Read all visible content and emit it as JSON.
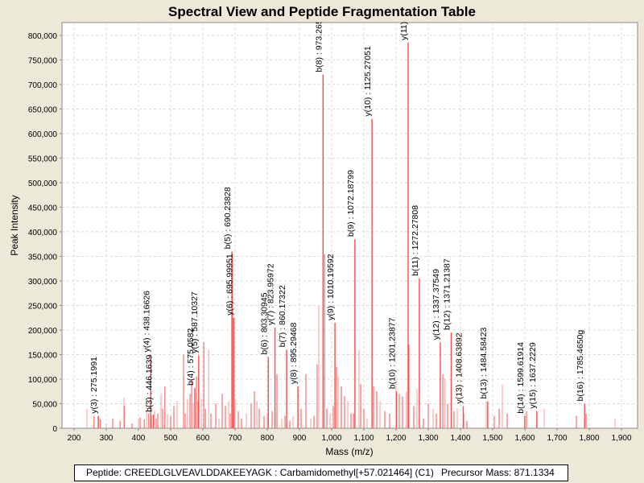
{
  "chart_data": {
    "type": "bar",
    "title": "Spectral View and Peptide Fragmentation Table",
    "xlabel": "Mass (m/z)",
    "ylabel": "Peak Intensity",
    "xlim": [
      162.5,
      1950
    ],
    "ylim": [
      0,
      826000
    ],
    "xticks": [
      200,
      300,
      400,
      500,
      600,
      700,
      800,
      900,
      1000,
      1100,
      1200,
      1300,
      1400,
      1500,
      1600,
      1700,
      1800,
      1900
    ],
    "xtick_labels": [
      "200",
      "300",
      "400",
      "500",
      "600",
      "700",
      "800",
      "900",
      "1,000",
      "1,100",
      "1,200",
      "1,300",
      "1,400",
      "1,500",
      "1,600",
      "1,700",
      "1,800",
      "1,900"
    ],
    "yticks": [
      0,
      50000,
      100000,
      150000,
      200000,
      250000,
      300000,
      350000,
      400000,
      450000,
      500000,
      550000,
      600000,
      650000,
      700000,
      750000,
      800000
    ],
    "ytick_labels": [
      "0",
      "50,000",
      "100,000",
      "150,000",
      "200,000",
      "250,000",
      "300,000",
      "350,000",
      "400,000",
      "450,000",
      "500,000",
      "550,000",
      "600,000",
      "650,000",
      "700,000",
      "750,000",
      "800,000"
    ],
    "grid": true,
    "colors": {
      "annotated": "#ff4a4a",
      "peak": "#ff6a6a",
      "peak_light": "#ffaaaa",
      "background": "#ffffff",
      "grid": "#d8d8d8"
    },
    "annotated_peaks": [
      {
        "mass": 275.1991,
        "intensity": 25000,
        "label": "y(3) : 275.1991"
      },
      {
        "mass": 446.1639,
        "intensity": 28000,
        "label": "b(3) : 446.1639"
      },
      {
        "mass": 438.16626,
        "intensity": 150000,
        "label": "y(4) : 438.16626"
      },
      {
        "mass": 575.0582,
        "intensity": 82000,
        "label": "b(4) : 575.0582"
      },
      {
        "mass": 587.10327,
        "intensity": 148000,
        "label": "y(5) : 587.10327"
      },
      {
        "mass": 690.23828,
        "intensity": 360000,
        "label": "b(5) : 690.23828"
      },
      {
        "mass": 695.99951,
        "intensity": 225000,
        "label": "y(6) : 695.99951"
      },
      {
        "mass": 803.30945,
        "intensity": 145000,
        "label": "b(6) : 803.30945"
      },
      {
        "mass": 823.95972,
        "intensity": 205000,
        "label": "y(7) : 823.95972"
      },
      {
        "mass": 860.17322,
        "intensity": 160000,
        "label": "b(7) : 860.17322"
      },
      {
        "mass": 895.29468,
        "intensity": 85000,
        "label": "y(8) : 895.29468"
      },
      {
        "mass": 973.265,
        "intensity": 720000,
        "label": "b(8) : 973.265"
      },
      {
        "mass": 1010.19592,
        "intensity": 215000,
        "label": "y(9) : 1010.19592"
      },
      {
        "mass": 1072.18799,
        "intensity": 385000,
        "label": "b(9) : 1072.18799"
      },
      {
        "mass": 1125.27051,
        "intensity": 630000,
        "label": "y(10) : 1125.27051"
      },
      {
        "mass": 1201.23877,
        "intensity": 75000,
        "label": "b(10) : 1201.23877"
      },
      {
        "mass": 1237.5,
        "intensity": 785000,
        "label": "y(11)"
      },
      {
        "mass": 1272.27808,
        "intensity": 305000,
        "label": "b(11) : 1272.27808"
      },
      {
        "mass": 1337.37549,
        "intensity": 175000,
        "label": "y(12) : 1337.37549"
      },
      {
        "mass": 1371.21387,
        "intensity": 195000,
        "label": "b(12) : 1371.21387"
      },
      {
        "mass": 1408.63892,
        "intensity": 45000,
        "label": "y(13) : 1408.63892"
      },
      {
        "mass": 1484.58423,
        "intensity": 55000,
        "label": "b(13) : 1484.58423"
      },
      {
        "mass": 1599.61914,
        "intensity": 25000,
        "label": "b(14) : 1599.61914"
      },
      {
        "mass": 1637.2229,
        "intensity": 35000,
        "label": "y(15) : 1637.2229"
      },
      {
        "mass": 1785.465,
        "intensity": 50000,
        "label": "b(16) : 1785.4650g"
      }
    ],
    "peaks": [
      [
        240,
        40000
      ],
      [
        262,
        25000
      ],
      [
        282,
        18000
      ],
      [
        300,
        10000
      ],
      [
        320,
        20000
      ],
      [
        343,
        15000
      ],
      [
        355,
        62000
      ],
      [
        356,
        45000
      ],
      [
        380,
        10000
      ],
      [
        400,
        20000
      ],
      [
        405,
        22000
      ],
      [
        418,
        18000
      ],
      [
        425,
        60000
      ],
      [
        432,
        30000
      ],
      [
        440,
        25000
      ],
      [
        450,
        35000
      ],
      [
        455,
        20000
      ],
      [
        460,
        30000
      ],
      [
        470,
        70000
      ],
      [
        475,
        40000
      ],
      [
        482,
        85000
      ],
      [
        490,
        30000
      ],
      [
        500,
        25000
      ],
      [
        510,
        45000
      ],
      [
        520,
        55000
      ],
      [
        540,
        150000
      ],
      [
        545,
        30000
      ],
      [
        552,
        60000
      ],
      [
        560,
        70000
      ],
      [
        565,
        100000
      ],
      [
        570,
        50000
      ],
      [
        580,
        105000
      ],
      [
        585,
        55000
      ],
      [
        595,
        60000
      ],
      [
        603,
        175000
      ],
      [
        608,
        40000
      ],
      [
        618,
        160000
      ],
      [
        625,
        30000
      ],
      [
        640,
        50000
      ],
      [
        650,
        20000
      ],
      [
        660,
        70000
      ],
      [
        670,
        45000
      ],
      [
        680,
        55000
      ],
      [
        685,
        30000
      ],
      [
        692,
        355000
      ],
      [
        700,
        60000
      ],
      [
        710,
        35000
      ],
      [
        720,
        20000
      ],
      [
        735,
        30000
      ],
      [
        750,
        50000
      ],
      [
        760,
        75000
      ],
      [
        768,
        55000
      ],
      [
        775,
        40000
      ],
      [
        790,
        25000
      ],
      [
        800,
        30000
      ],
      [
        815,
        35000
      ],
      [
        830,
        110000
      ],
      [
        845,
        20000
      ],
      [
        855,
        25000
      ],
      [
        870,
        15000
      ],
      [
        880,
        25000
      ],
      [
        905,
        40000
      ],
      [
        920,
        110000
      ],
      [
        935,
        20000
      ],
      [
        945,
        25000
      ],
      [
        955,
        130000
      ],
      [
        960,
        250000
      ],
      [
        978,
        355000
      ],
      [
        985,
        40000
      ],
      [
        995,
        30000
      ],
      [
        1005,
        45000
      ],
      [
        1015,
        125000
      ],
      [
        1020,
        105000
      ],
      [
        1030,
        85000
      ],
      [
        1040,
        65000
      ],
      [
        1050,
        55000
      ],
      [
        1060,
        30000
      ],
      [
        1068,
        30000
      ],
      [
        1085,
        160000
      ],
      [
        1090,
        90000
      ],
      [
        1100,
        40000
      ],
      [
        1110,
        20000
      ],
      [
        1130,
        85000
      ],
      [
        1140,
        75000
      ],
      [
        1150,
        55000
      ],
      [
        1165,
        35000
      ],
      [
        1180,
        30000
      ],
      [
        1200,
        90000
      ],
      [
        1210,
        70000
      ],
      [
        1220,
        65000
      ],
      [
        1232,
        75000
      ],
      [
        1240,
        170000
      ],
      [
        1255,
        45000
      ],
      [
        1265,
        80000
      ],
      [
        1285,
        20000
      ],
      [
        1300,
        50000
      ],
      [
        1315,
        40000
      ],
      [
        1325,
        30000
      ],
      [
        1345,
        110000
      ],
      [
        1352,
        100000
      ],
      [
        1360,
        50000
      ],
      [
        1380,
        35000
      ],
      [
        1390,
        40000
      ],
      [
        1410,
        30000
      ],
      [
        1420,
        15000
      ],
      [
        1480,
        55000
      ],
      [
        1505,
        25000
      ],
      [
        1520,
        40000
      ],
      [
        1530,
        90000
      ],
      [
        1545,
        30000
      ],
      [
        1605,
        35000
      ],
      [
        1660,
        40000
      ],
      [
        1760,
        25000
      ],
      [
        1790,
        30000
      ],
      [
        1880,
        20000
      ]
    ]
  },
  "legend": {
    "peptide": "Peptide: CREEDLGLVEAVLDDAKEEYAGK : Carbamidomethyl[+57.021464] (C1)",
    "precursor": "Precursor Mass: 871.1334"
  }
}
